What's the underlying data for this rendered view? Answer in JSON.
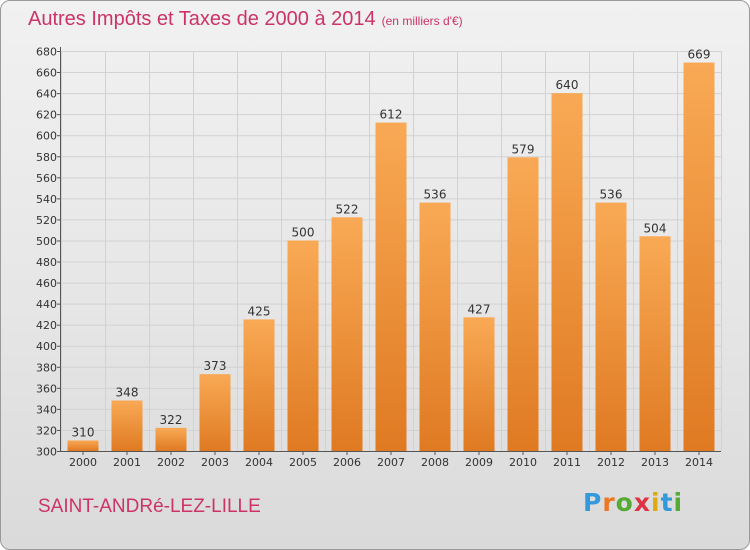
{
  "title": {
    "main": "Autres Impôts et Taxes de 2000 à 2014",
    "unit": "(en milliers d'€)"
  },
  "commune": "SAINT-ANDRé-LEZ-LILLE",
  "logo": {
    "letters": [
      "P",
      "r",
      "o",
      "x",
      "i",
      "t",
      "i"
    ],
    "colors": [
      "#3399dd",
      "#ee7722",
      "#55aa33",
      "#dd3344",
      "#ddaa11",
      "#3399dd",
      "#55aa33"
    ]
  },
  "colors": {
    "bar_top": "#f9a955",
    "bar_bottom": "#df7a22",
    "grid": "#d2d2d2",
    "text": "#333333",
    "accent": "#cc3366"
  },
  "chart_data": {
    "type": "bar",
    "categories": [
      "2000",
      "2001",
      "2002",
      "2003",
      "2004",
      "2005",
      "2006",
      "2007",
      "2008",
      "2009",
      "2010",
      "2011",
      "2012",
      "2013",
      "2014"
    ],
    "values": [
      310,
      348,
      322,
      373,
      425,
      500,
      522,
      612,
      536,
      427,
      579,
      640,
      536,
      504,
      669
    ],
    "title": "Autres Impôts et Taxes de 2000 à 2014",
    "xlabel": "",
    "ylabel": "",
    "ylim": [
      300,
      680
    ],
    "yticks": [
      300,
      320,
      340,
      360,
      380,
      400,
      420,
      440,
      460,
      480,
      500,
      520,
      540,
      560,
      580,
      600,
      620,
      640,
      660,
      680
    ],
    "grid": true,
    "data_labels": true
  }
}
